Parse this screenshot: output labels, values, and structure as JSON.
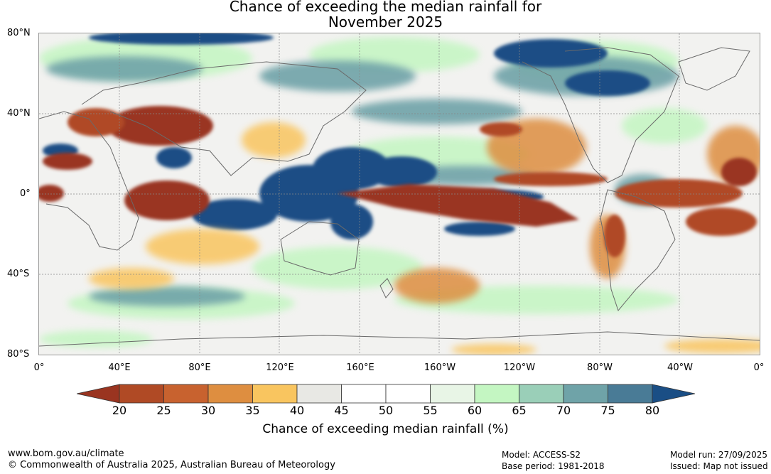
{
  "title_line1": "Chance of exceeding the median rainfall for",
  "title_line2": "November 2025",
  "lat_labels": [
    "80°N",
    "40°N",
    "0°",
    "40°S",
    "80°S"
  ],
  "lon_labels": [
    "0°",
    "40°E",
    "80°E",
    "120°E",
    "160°E",
    "160°W",
    "120°W",
    "80°W",
    "40°W",
    "0°"
  ],
  "legend": {
    "ticks": [
      "20",
      "25",
      "30",
      "35",
      "40",
      "45",
      "50",
      "55",
      "60",
      "65",
      "70",
      "75",
      "80"
    ],
    "colors": [
      "#9a3420",
      "#b04a25",
      "#c8622f",
      "#de8e40",
      "#f9c55f",
      "#e8e8e4",
      "#ffffff",
      "#ffffff",
      "#e8f5e6",
      "#c4f6c2",
      "#9acfb8",
      "#6fa3a8",
      "#497b96",
      "#1a4e85"
    ],
    "label": "Chance of exceeding median rainfall (%)"
  },
  "footer": {
    "website": "www.bom.gov.au/climate",
    "copyright": "© Commonwealth of Australia 2025, Australian Bureau of Meteorology",
    "model": "Model: ACCESS-S2",
    "base_period": "Base period: 1981-2018",
    "model_run": "Model run: 27/09/2025",
    "issued": "Issued: Map not issued"
  }
}
